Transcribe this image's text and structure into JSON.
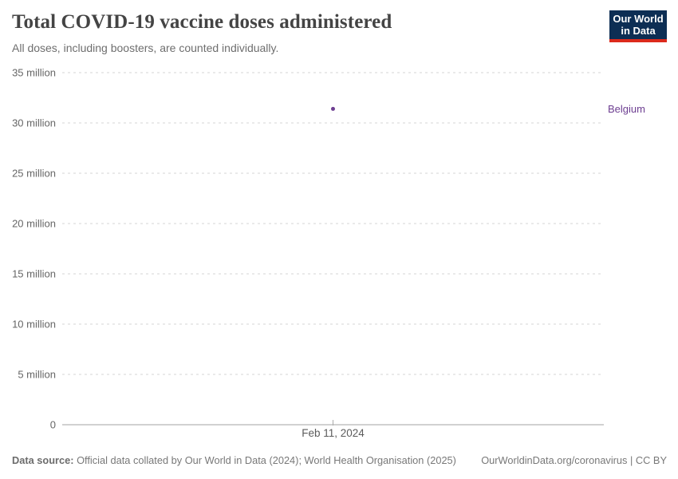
{
  "header": {
    "title": "Total COVID-19 vaccine doses administered",
    "subtitle": "All doses, including boosters, are counted individually."
  },
  "logo": {
    "line1": "Our World",
    "line2": "in Data",
    "bg_color": "#0d2e54",
    "accent_color": "#dc2a1c"
  },
  "footer": {
    "source_label": "Data source:",
    "source_text": " Official data collated by Our World in Data (2024); World Health Organisation (2025)",
    "link_text": "OurWorldinData.org/coronavirus | CC BY"
  },
  "chart_data": {
    "type": "scatter",
    "title": "Total COVID-19 vaccine doses administered",
    "subtitle": "All doses, including boosters, are counted individually.",
    "series": [
      {
        "name": "Belgium",
        "color": "#6d3e91",
        "points": [
          {
            "x": "Feb 11, 2024",
            "y": 31400000
          }
        ]
      }
    ],
    "entity_label": "Belgium",
    "x_ticks": [
      "Feb 11, 2024"
    ],
    "xlabel": "",
    "ylabel": "",
    "ylim": [
      0,
      35000000
    ],
    "y_ticks": [
      {
        "value": 0,
        "label": "0"
      },
      {
        "value": 5000000,
        "label": "5 million"
      },
      {
        "value": 10000000,
        "label": "10 million"
      },
      {
        "value": 15000000,
        "label": "15 million"
      },
      {
        "value": 20000000,
        "label": "20 million"
      },
      {
        "value": 25000000,
        "label": "25 million"
      },
      {
        "value": 30000000,
        "label": "30 million"
      },
      {
        "value": 35000000,
        "label": "35 million"
      }
    ],
    "grid": "horizontal-dashed",
    "grid_color": "#dedede",
    "axis_line_color": "#a3a3a3",
    "tick_label_color": "#666666",
    "legend_position": "entity-label-right"
  }
}
